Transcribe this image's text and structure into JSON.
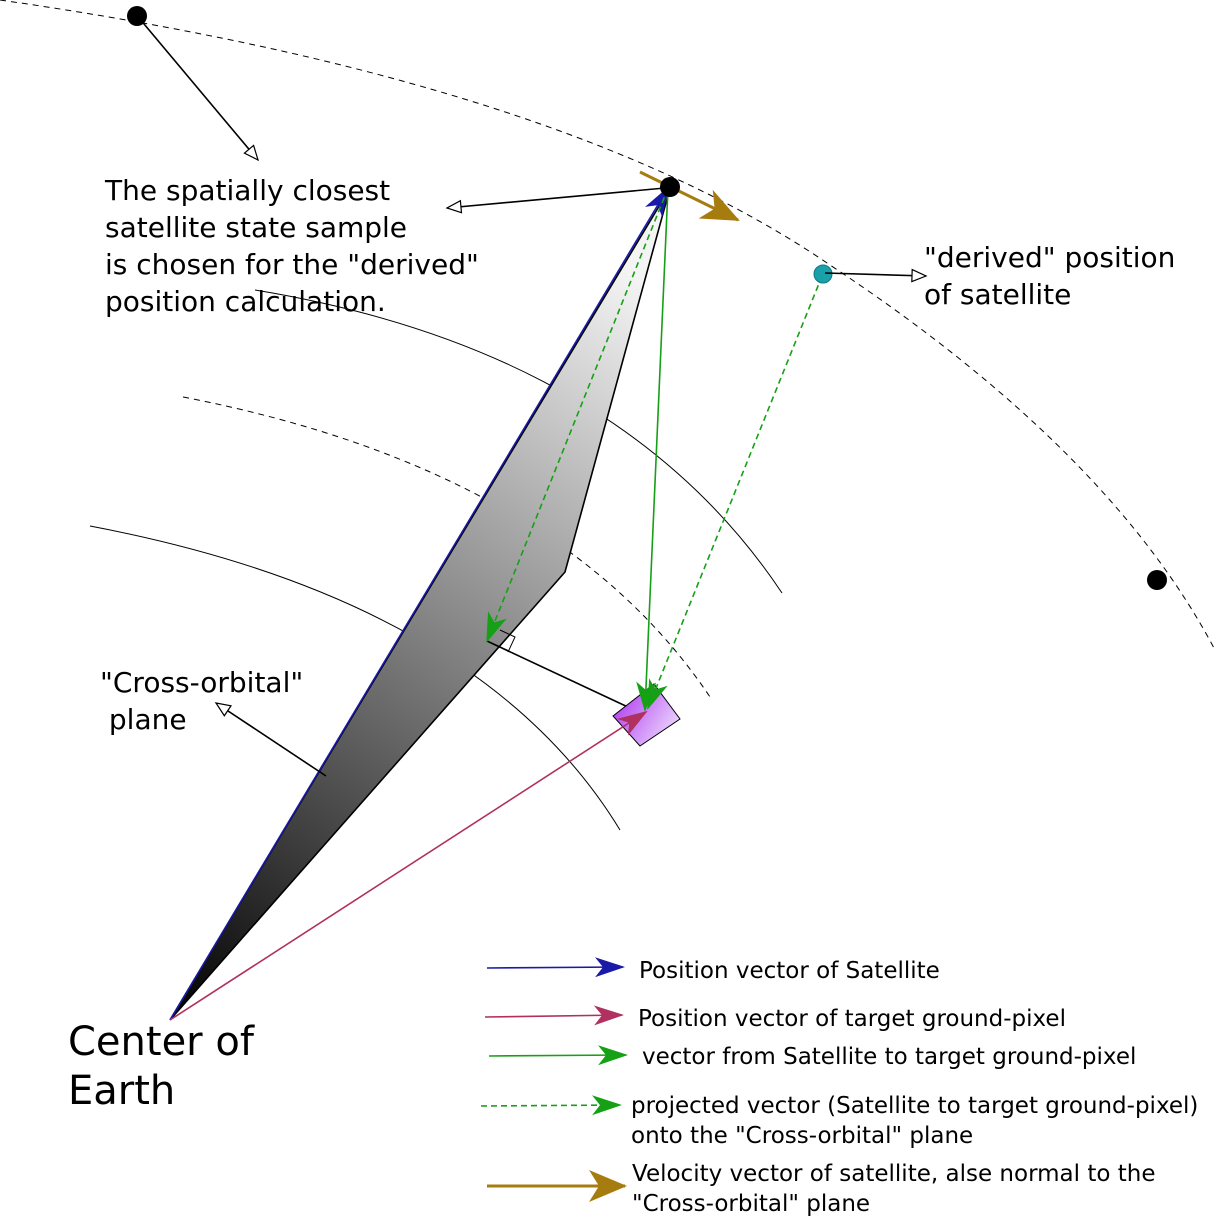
{
  "colors": {
    "satellite_position": "#1a1aa8",
    "target_position": "#b03060",
    "satellite_to_target": "#16a016",
    "projected_vector": "#16a016",
    "velocity": "#a67c0e",
    "derived_point": "#1aa0a8",
    "target_pixel": "#c070f0"
  },
  "annotations": {
    "closest_sample": [
      "The spatially closest",
      "satellite state sample",
      "is chosen for the \"derived\"",
      "position calculation."
    ],
    "derived_position": [
      "\"derived\" position",
      "of satellite"
    ],
    "cross_orbital_plane": [
      "\"Cross-orbital\"",
      " plane"
    ],
    "center_of_earth": [
      "Center of",
      "Earth"
    ]
  },
  "legend": {
    "satellite_position": "Position vector of Satellite",
    "target_position": "Position vector of target ground-pixel",
    "satellite_to_target": "vector from Satellite to target ground-pixel",
    "projected": [
      "projected vector (Satellite to target ground-pixel)",
      "onto the \"Cross-orbital\" plane"
    ],
    "velocity": [
      "Velocity vector of satellite, alse normal to the",
      "\"Cross-orbital\" plane"
    ]
  }
}
